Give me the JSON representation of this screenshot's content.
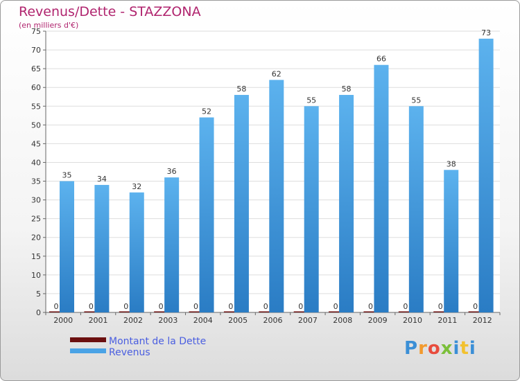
{
  "chart_data": {
    "type": "bar",
    "title": "Revenus/Dette - STAZZONA",
    "subtitle": "(en milliers d'€)",
    "categories": [
      "2000",
      "2001",
      "2002",
      "2003",
      "2004",
      "2005",
      "2006",
      "2007",
      "2008",
      "2009",
      "2010",
      "2011",
      "2012"
    ],
    "series": [
      {
        "name": "Montant de la Dette",
        "color": "#6b0f0f",
        "values": [
          0,
          0,
          0,
          0,
          0,
          0,
          0,
          0,
          0,
          0,
          0,
          0,
          0
        ]
      },
      {
        "name": "Revenus",
        "color": "#4aa3e6",
        "values": [
          35,
          34,
          32,
          36,
          52,
          58,
          62,
          55,
          58,
          66,
          55,
          38,
          73
        ]
      }
    ],
    "ylim": [
      0,
      75
    ],
    "yticks": [
      0,
      5,
      10,
      15,
      20,
      25,
      30,
      35,
      40,
      45,
      50,
      55,
      60,
      65,
      70,
      75
    ],
    "grid": true,
    "legend_position": "bottom-left"
  },
  "logo": {
    "letters": [
      "P",
      "r",
      "o",
      "x",
      "i",
      "t",
      "i"
    ],
    "colors": [
      "#3b8fd6",
      "#f29a2e",
      "#e84c3d",
      "#7bbf3a",
      "#3b8fd6",
      "#f2c12e",
      "#3b8fd6"
    ]
  }
}
